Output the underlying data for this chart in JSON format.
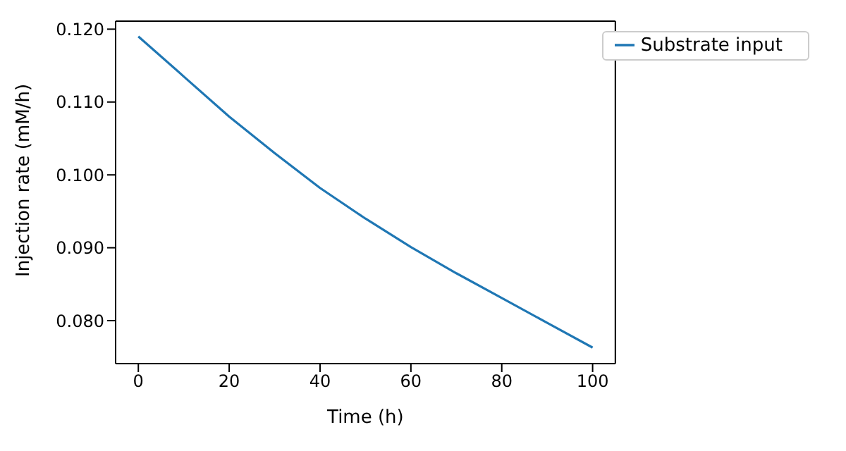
{
  "chart_data": {
    "type": "line",
    "xlabel": "Time (h)",
    "ylabel": "Injection rate (mM/h)",
    "x": [
      0,
      10,
      20,
      30,
      40,
      50,
      60,
      70,
      80,
      90,
      100
    ],
    "series": [
      {
        "name": "Substrate input",
        "color": "#1f77b4",
        "values": [
          0.119,
          0.1135,
          0.108,
          0.103,
          0.0982,
          0.094,
          0.0901,
          0.0865,
          0.0831,
          0.0797,
          0.0763
        ]
      }
    ],
    "xlim": [
      -5,
      105
    ],
    "xticks": [
      0,
      20,
      40,
      60,
      80,
      100
    ],
    "ylim": [
      0.0741,
      0.1211
    ],
    "yticks": [
      {
        "value": 0.08,
        "label": "0.080"
      },
      {
        "value": 0.09,
        "label": "0.090"
      },
      {
        "value": 0.1,
        "label": "0.100"
      },
      {
        "value": 0.11,
        "label": "0.110"
      },
      {
        "value": 0.12,
        "label": "0.120"
      }
    ],
    "legend": "top right",
    "grid": false,
    "marker": "none",
    "line_style": "solid"
  }
}
